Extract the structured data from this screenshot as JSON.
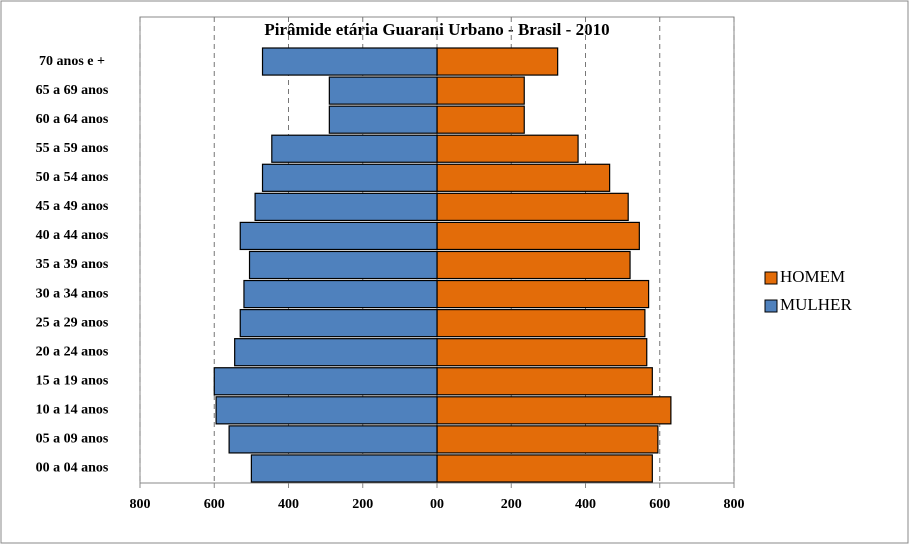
{
  "chart_data": {
    "type": "pyramid",
    "title": "Pirâmide  etária Guarani  Urbano  - Brasil - 2010",
    "categories": [
      "70 anos e +",
      "65 a 69 anos",
      "60 a 64 anos",
      "55 a 59 anos",
      "50 a 54 anos",
      "45 a 49 anos",
      "40 a 44 anos",
      "35 a 39 anos",
      "30 a 34 anos",
      "25 a 29 anos",
      "20 a 24 anos",
      "15 a 19 anos",
      "10 a 14 anos",
      "05 a 09 anos",
      "00 a 04 anos"
    ],
    "series": [
      {
        "name": "HOMEM",
        "color": "#e36c09",
        "values": [
          325,
          235,
          235,
          380,
          465,
          515,
          545,
          520,
          570,
          560,
          565,
          580,
          630,
          595,
          580
        ]
      },
      {
        "name": "MULHER",
        "color": "#4f81bd",
        "values": [
          -470,
          -290,
          -290,
          -445,
          -470,
          -490,
          -530,
          -505,
          -520,
          -530,
          -545,
          -600,
          -595,
          -560,
          -500
        ]
      }
    ],
    "xlim": [
      -800,
      800
    ],
    "xticks": [
      {
        "value": -800,
        "label": "800"
      },
      {
        "value": -600,
        "label": "600"
      },
      {
        "value": -400,
        "label": "400"
      },
      {
        "value": -200,
        "label": "200"
      },
      {
        "value": 0,
        "label": "00"
      },
      200,
      400,
      600,
      800
    ],
    "grid": true,
    "legend": "right"
  }
}
